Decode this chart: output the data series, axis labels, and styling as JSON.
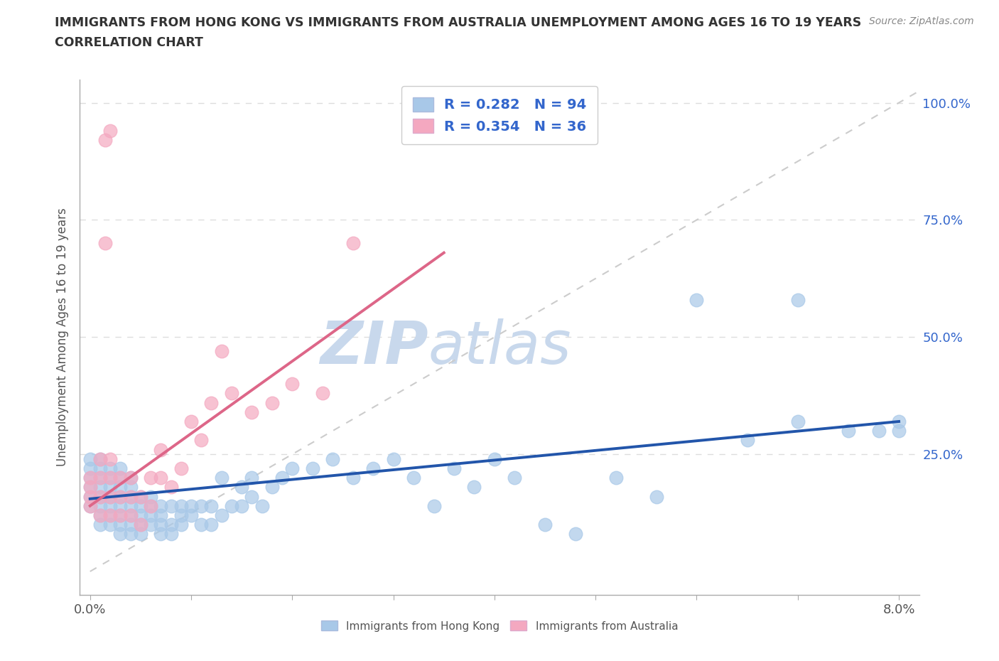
{
  "title_line1": "IMMIGRANTS FROM HONG KONG VS IMMIGRANTS FROM AUSTRALIA UNEMPLOYMENT AMONG AGES 16 TO 19 YEARS",
  "title_line2": "CORRELATION CHART",
  "source_text": "Source: ZipAtlas.com",
  "ylabel": "Unemployment Among Ages 16 to 19 years",
  "xlim": [
    -0.001,
    0.082
  ],
  "ylim": [
    -0.05,
    1.05
  ],
  "hk_color": "#a8c8e8",
  "aus_color": "#f4a8c0",
  "hk_line_color": "#2255aa",
  "aus_line_color": "#dd6688",
  "diagonal_color": "#cccccc",
  "watermark_text": "ZIP",
  "watermark_text2": "atlas",
  "watermark_color": "#c8d8ec",
  "R_hk": "0.282",
  "N_hk": "94",
  "R_aus": "0.354",
  "N_aus": "36",
  "legend_color": "#3366cc",
  "hk_scatter_x": [
    0.0,
    0.0,
    0.0,
    0.0,
    0.0,
    0.0,
    0.001,
    0.001,
    0.001,
    0.001,
    0.001,
    0.001,
    0.001,
    0.001,
    0.002,
    0.002,
    0.002,
    0.002,
    0.002,
    0.002,
    0.002,
    0.003,
    0.003,
    0.003,
    0.003,
    0.003,
    0.003,
    0.003,
    0.003,
    0.004,
    0.004,
    0.004,
    0.004,
    0.004,
    0.004,
    0.004,
    0.005,
    0.005,
    0.005,
    0.005,
    0.005,
    0.006,
    0.006,
    0.006,
    0.006,
    0.007,
    0.007,
    0.007,
    0.007,
    0.008,
    0.008,
    0.008,
    0.009,
    0.009,
    0.009,
    0.01,
    0.01,
    0.011,
    0.011,
    0.012,
    0.012,
    0.013,
    0.013,
    0.014,
    0.015,
    0.015,
    0.016,
    0.016,
    0.017,
    0.018,
    0.019,
    0.02,
    0.022,
    0.024,
    0.026,
    0.028,
    0.03,
    0.032,
    0.034,
    0.036,
    0.038,
    0.04,
    0.042,
    0.045,
    0.048,
    0.052,
    0.056,
    0.06,
    0.065,
    0.07,
    0.075,
    0.078,
    0.08,
    0.08
  ],
  "hk_scatter_y": [
    0.14,
    0.16,
    0.18,
    0.2,
    0.22,
    0.24,
    0.12,
    0.14,
    0.16,
    0.18,
    0.2,
    0.22,
    0.24,
    0.1,
    0.1,
    0.12,
    0.14,
    0.16,
    0.18,
    0.2,
    0.22,
    0.08,
    0.1,
    0.12,
    0.14,
    0.16,
    0.18,
    0.2,
    0.22,
    0.08,
    0.1,
    0.12,
    0.14,
    0.16,
    0.18,
    0.2,
    0.08,
    0.1,
    0.12,
    0.14,
    0.16,
    0.1,
    0.12,
    0.14,
    0.16,
    0.08,
    0.1,
    0.12,
    0.14,
    0.08,
    0.1,
    0.14,
    0.1,
    0.12,
    0.14,
    0.12,
    0.14,
    0.1,
    0.14,
    0.1,
    0.14,
    0.12,
    0.2,
    0.14,
    0.14,
    0.18,
    0.16,
    0.2,
    0.14,
    0.18,
    0.2,
    0.22,
    0.22,
    0.24,
    0.2,
    0.22,
    0.24,
    0.2,
    0.14,
    0.22,
    0.18,
    0.24,
    0.2,
    0.1,
    0.08,
    0.2,
    0.16,
    0.58,
    0.28,
    0.32,
    0.3,
    0.3,
    0.3,
    0.32
  ],
  "aus_scatter_x": [
    0.0,
    0.0,
    0.0,
    0.0,
    0.001,
    0.001,
    0.001,
    0.001,
    0.002,
    0.002,
    0.002,
    0.002,
    0.003,
    0.003,
    0.003,
    0.004,
    0.004,
    0.004,
    0.005,
    0.005,
    0.006,
    0.006,
    0.007,
    0.007,
    0.008,
    0.009,
    0.01,
    0.011,
    0.012,
    0.013,
    0.014,
    0.016,
    0.018,
    0.02,
    0.023,
    0.026
  ],
  "aus_scatter_y": [
    0.14,
    0.16,
    0.18,
    0.2,
    0.12,
    0.16,
    0.2,
    0.24,
    0.12,
    0.16,
    0.2,
    0.24,
    0.12,
    0.16,
    0.2,
    0.12,
    0.16,
    0.2,
    0.1,
    0.16,
    0.14,
    0.2,
    0.2,
    0.26,
    0.18,
    0.22,
    0.32,
    0.28,
    0.36,
    0.47,
    0.38,
    0.34,
    0.36,
    0.4,
    0.38,
    0.7
  ],
  "hk_trend": [
    0.0,
    0.08,
    0.155,
    0.32
  ],
  "aus_trend": [
    0.0,
    0.035,
    0.14,
    0.68
  ],
  "background_color": "#ffffff",
  "grid_color": "#dddddd",
  "aus_extra_points": [
    [
      0.0015,
      0.92
    ],
    [
      0.002,
      0.94
    ],
    [
      0.0015,
      0.7
    ]
  ],
  "hk_extra_points": [
    [
      0.07,
      0.58
    ]
  ]
}
